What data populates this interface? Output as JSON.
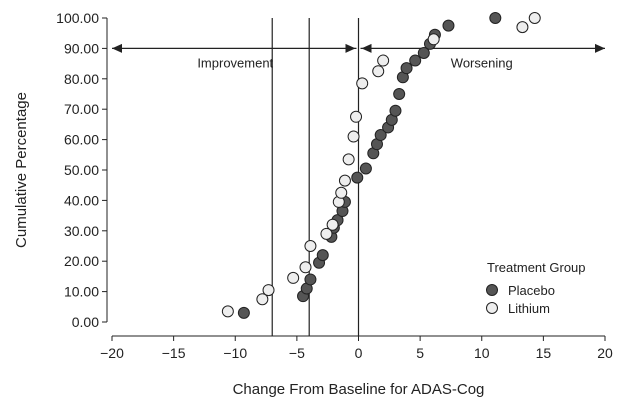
{
  "chart_data": {
    "type": "scatter",
    "xlabel": "Change From Baseline for ADAS-Cog",
    "ylabel": "Cumulative Percentage",
    "xlim": [
      -20,
      20
    ],
    "ylim": [
      0,
      100
    ],
    "x_ticks": [
      "−20",
      "−15",
      "−10",
      "−5",
      "0",
      "5",
      "10",
      "15",
      "20"
    ],
    "y_ticks": [
      "0.00",
      "10.00",
      "20.00",
      "30.00",
      "40.00",
      "50.00",
      "60.00",
      "70.00",
      "80.00",
      "90.00",
      "100.00"
    ],
    "grid": false,
    "vertical_lines": [
      -7,
      -4,
      0
    ],
    "annotations": [
      {
        "text": "Improvement",
        "arrow_from": 0,
        "arrow_to": -20,
        "y": 90
      },
      {
        "text": "Worsening",
        "arrow_from": 0,
        "arrow_to": 20,
        "y": 90
      }
    ],
    "legend": {
      "title": "Treatment Group",
      "position": "bottom-right"
    },
    "series": [
      {
        "name": "Placebo",
        "color": "#555555",
        "points": [
          [
            -9.3,
            3
          ],
          [
            -4.5,
            8.5
          ],
          [
            -4.2,
            11
          ],
          [
            -3.9,
            14
          ],
          [
            -3.2,
            19.5
          ],
          [
            -2.9,
            22
          ],
          [
            -2.2,
            28
          ],
          [
            -2.0,
            31
          ],
          [
            -1.7,
            33.5
          ],
          [
            -1.3,
            36.5
          ],
          [
            -1.1,
            39.5
          ],
          [
            -0.1,
            47.5
          ],
          [
            0.6,
            50.5
          ],
          [
            1.2,
            55.5
          ],
          [
            1.5,
            58.5
          ],
          [
            1.8,
            61.5
          ],
          [
            2.4,
            64
          ],
          [
            2.7,
            66.5
          ],
          [
            3.0,
            69.5
          ],
          [
            3.3,
            75
          ],
          [
            3.6,
            80.5
          ],
          [
            3.9,
            83.5
          ],
          [
            4.6,
            86
          ],
          [
            5.3,
            88.5
          ],
          [
            5.8,
            91.5
          ],
          [
            6.2,
            94.5
          ],
          [
            7.3,
            97.5
          ],
          [
            11.1,
            100
          ]
        ]
      },
      {
        "name": "Lithium",
        "color": "#eeeeee",
        "points": [
          [
            -10.6,
            3.5
          ],
          [
            -7.8,
            7.5
          ],
          [
            -7.3,
            10.5
          ],
          [
            -5.3,
            14.5
          ],
          [
            -4.3,
            18
          ],
          [
            -3.9,
            25
          ],
          [
            -2.6,
            29
          ],
          [
            -2.1,
            32
          ],
          [
            -1.6,
            39.5
          ],
          [
            -1.4,
            42.5
          ],
          [
            -1.1,
            46.5
          ],
          [
            -0.8,
            53.5
          ],
          [
            -0.4,
            61
          ],
          [
            -0.2,
            67.5
          ],
          [
            0.3,
            78.5
          ],
          [
            1.6,
            82.5
          ],
          [
            2.0,
            86
          ],
          [
            6.1,
            93
          ],
          [
            13.3,
            97
          ],
          [
            14.3,
            100
          ]
        ]
      }
    ]
  }
}
